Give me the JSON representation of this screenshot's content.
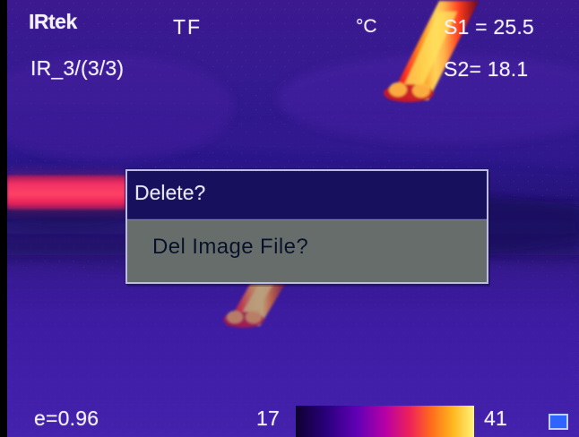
{
  "camera": {
    "brand": "IRtek",
    "storage": "TF",
    "unit": "°C",
    "file_counter": "IR_3/(3/3)"
  },
  "measurements": {
    "s1": "S1 = 25.5",
    "s2": "S2= 18.1",
    "emissivity": "e=0.96"
  },
  "scale": {
    "min": "17",
    "max": "41"
  },
  "dialog": {
    "title": "Delete?",
    "message": "Del Image File?"
  },
  "colors": {
    "dialog_title_bar": "#17115d",
    "dialog_body": "#666d6a",
    "background_purple": "#2a168a",
    "hot_yellow": "#ffe04a",
    "hot_red": "#ff2b35",
    "mode_blue": "#2f64ff"
  },
  "icons": {
    "mode_indicator": "blue-square-icon"
  }
}
